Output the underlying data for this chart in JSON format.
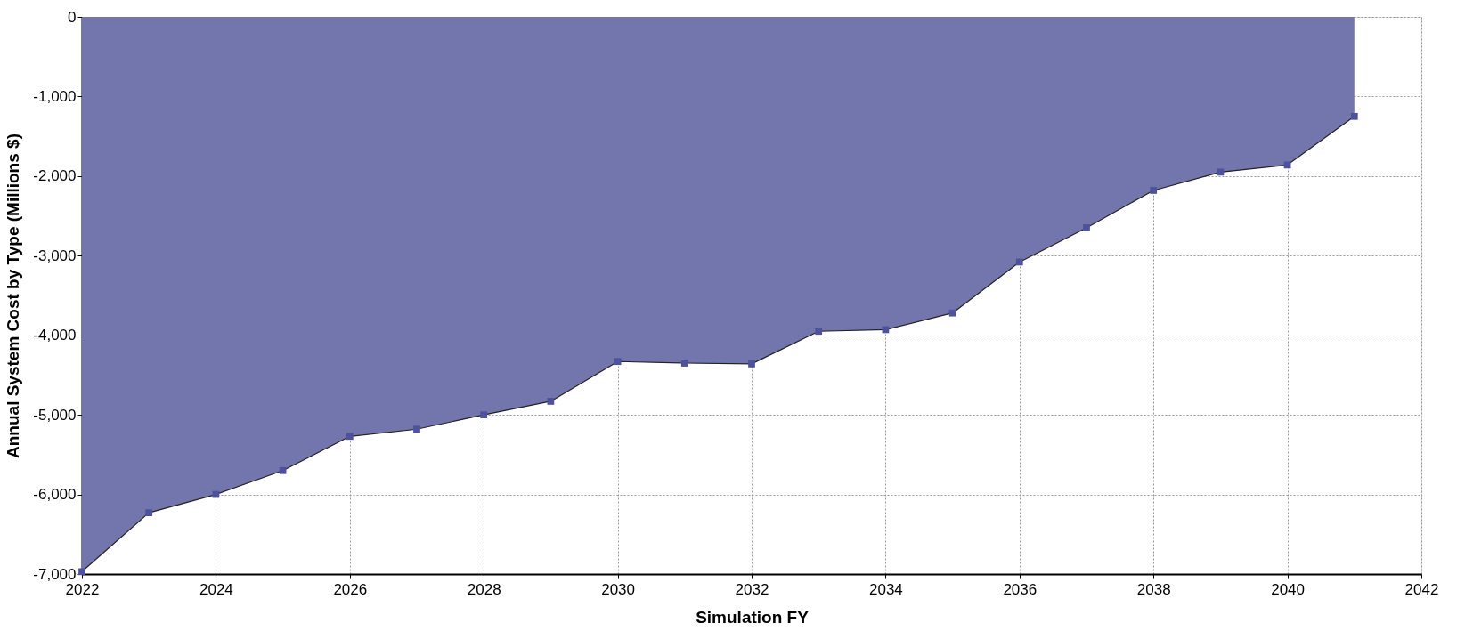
{
  "chart_data": {
    "type": "area",
    "xlabel": "Simulation FY",
    "ylabel": "Annual System Cost by Type (Millions $)",
    "x": [
      2022,
      2023,
      2024,
      2025,
      2026,
      2027,
      2028,
      2029,
      2030,
      2031,
      2032,
      2033,
      2034,
      2035,
      2036,
      2037,
      2038,
      2039,
      2040,
      2041
    ],
    "series": [
      {
        "color": "#7376ad",
        "values": [
          -6970,
          -6230,
          -6000,
          -5700,
          -5270,
          -5180,
          -5000,
          -4830,
          -4330,
          -4350,
          -4360,
          -3950,
          -3930,
          -3720,
          -3080,
          -2650,
          -2180,
          -1950,
          -1860,
          -1250
        ]
      }
    ],
    "xlim": [
      2022,
      2042
    ],
    "xticks": [
      2022,
      2024,
      2026,
      2028,
      2030,
      2032,
      2034,
      2036,
      2038,
      2040,
      2042
    ],
    "ylim": [
      -7000,
      0
    ],
    "yticks": [
      {
        "value": -7000,
        "label": "-7,000"
      },
      {
        "value": -6000,
        "label": "-6,000"
      },
      {
        "value": -5000,
        "label": "-5,000"
      },
      {
        "value": -4000,
        "label": "-4,000"
      },
      {
        "value": -3000,
        "label": "-3,000"
      },
      {
        "value": -2000,
        "label": "-2,000"
      },
      {
        "value": -1000,
        "label": "-1,000"
      },
      0
    ],
    "grid": true,
    "marker": "square",
    "line_style": "solid"
  }
}
